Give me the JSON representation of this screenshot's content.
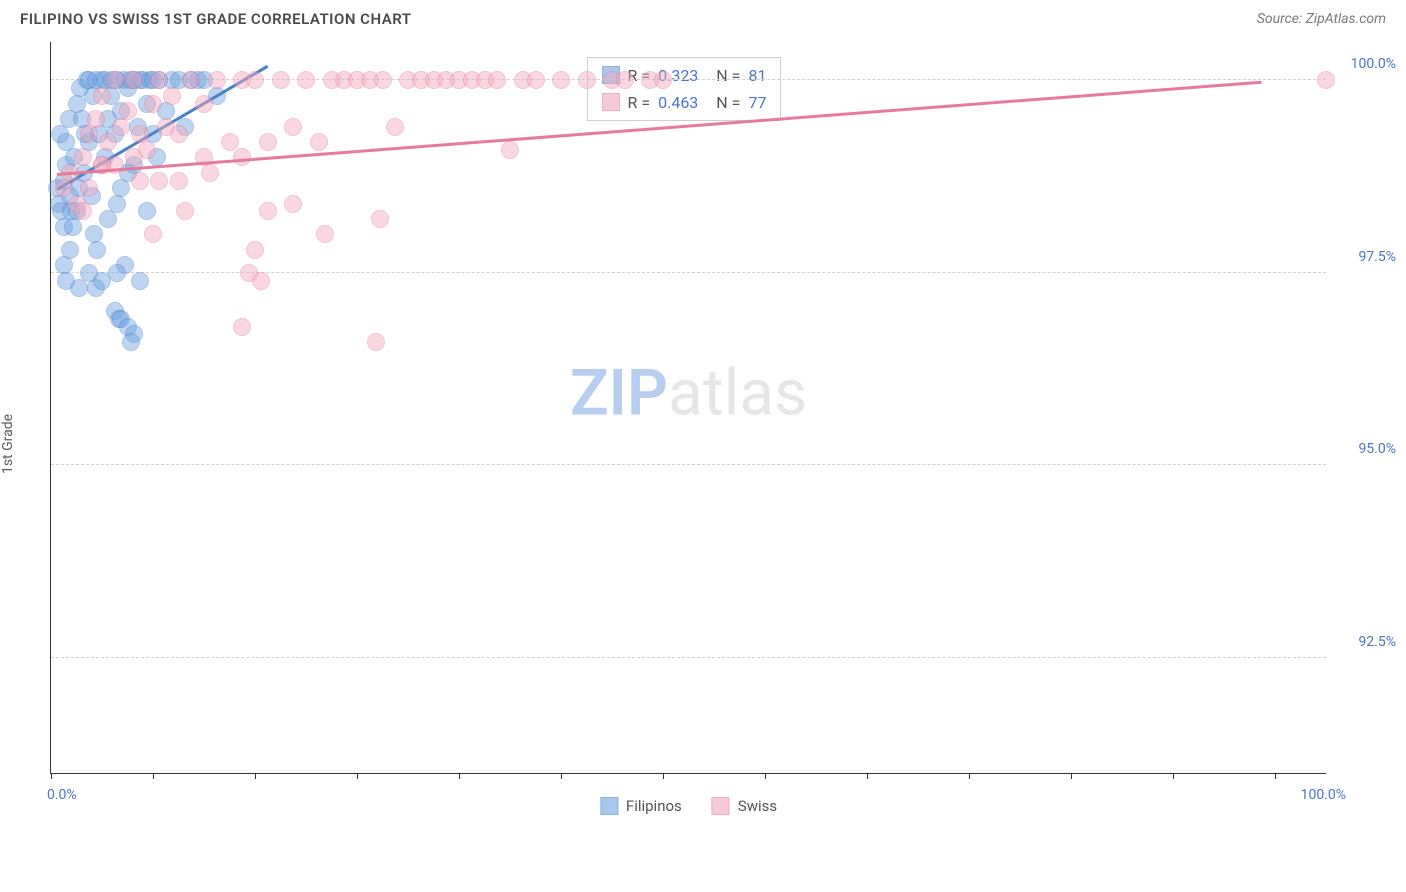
{
  "title": "FILIPINO VS SWISS 1ST GRADE CORRELATION CHART",
  "source_label": "Source: ZipAtlas.com",
  "ylabel": "1st Grade",
  "watermark": {
    "zip": "ZIP",
    "atlas": "atlas",
    "zip_color": "#b8cef0",
    "atlas_color": "#e6e6e6"
  },
  "chart": {
    "type": "scatter",
    "background_color": "#ffffff",
    "grid_color": "#d0d0d0",
    "axis_color": "#333333",
    "xlim": [
      0,
      100
    ],
    "ylim": [
      91.0,
      100.5
    ],
    "x_ticks_minor": [
      0,
      8,
      16,
      24,
      32,
      40,
      48,
      56,
      64,
      72,
      80,
      88,
      96
    ],
    "y_gridlines": [
      92.5,
      95.0,
      97.5,
      100.0
    ],
    "y_tick_labels": [
      "92.5%",
      "95.0%",
      "97.5%",
      "100.0%"
    ],
    "x_start_label": "0.0%",
    "x_end_label": "100.0%",
    "point_radius": 9,
    "point_opacity": 0.45,
    "series": [
      {
        "name": "Filipinos",
        "color": "#6fa3e0",
        "stroke": "#4a7fc9",
        "R": "0.323",
        "N": "81",
        "trend": {
          "x1": 0.5,
          "y1": 98.6,
          "x2": 17,
          "y2": 100.2,
          "width": 2.5
        },
        "points": [
          [
            0.5,
            98.6
          ],
          [
            0.6,
            98.4
          ],
          [
            0.8,
            98.3
          ],
          [
            1.0,
            98.1
          ],
          [
            1.0,
            98.7
          ],
          [
            1.2,
            98.9
          ],
          [
            1.2,
            99.2
          ],
          [
            0.7,
            99.3
          ],
          [
            1.4,
            99.5
          ],
          [
            1.5,
            98.5
          ],
          [
            1.6,
            98.3
          ],
          [
            1.7,
            98.1
          ],
          [
            1.8,
            99.0
          ],
          [
            2.0,
            99.7
          ],
          [
            2.0,
            98.3
          ],
          [
            2.2,
            98.6
          ],
          [
            2.3,
            99.9
          ],
          [
            2.4,
            99.5
          ],
          [
            2.2,
            97.3
          ],
          [
            2.6,
            98.8
          ],
          [
            2.7,
            99.3
          ],
          [
            2.8,
            100.0
          ],
          [
            3.0,
            99.2
          ],
          [
            3.0,
            100.0
          ],
          [
            3.2,
            98.5
          ],
          [
            3.3,
            99.8
          ],
          [
            3.4,
            98.0
          ],
          [
            3.5,
            100.0
          ],
          [
            3.6,
            97.8
          ],
          [
            3.8,
            99.3
          ],
          [
            4.0,
            100.0
          ],
          [
            4.2,
            99.0
          ],
          [
            4.2,
            100.0
          ],
          [
            4.5,
            99.5
          ],
          [
            4.5,
            98.2
          ],
          [
            4.7,
            99.8
          ],
          [
            4.8,
            100.0
          ],
          [
            5.0,
            99.3
          ],
          [
            5.2,
            98.4
          ],
          [
            5.2,
            100.0
          ],
          [
            5.5,
            99.6
          ],
          [
            5.7,
            100.0
          ],
          [
            5.8,
            97.6
          ],
          [
            6.0,
            99.9
          ],
          [
            6.2,
            100.0
          ],
          [
            6.5,
            98.9
          ],
          [
            6.5,
            100.0
          ],
          [
            6.8,
            99.4
          ],
          [
            7.0,
            100.0
          ],
          [
            7.2,
            100.0
          ],
          [
            7.5,
            99.7
          ],
          [
            7.5,
            98.3
          ],
          [
            7.8,
            100.0
          ],
          [
            8.0,
            99.3
          ],
          [
            8.0,
            100.0
          ],
          [
            8.3,
            99.0
          ],
          [
            8.5,
            100.0
          ],
          [
            9.0,
            99.6
          ],
          [
            9.5,
            100.0
          ],
          [
            10.0,
            100.0
          ],
          [
            10.5,
            99.4
          ],
          [
            11.0,
            100.0
          ],
          [
            11.5,
            100.0
          ],
          [
            12.0,
            100.0
          ],
          [
            13.0,
            99.8
          ],
          [
            1.0,
            97.6
          ],
          [
            1.2,
            97.4
          ],
          [
            1.5,
            97.8
          ],
          [
            5.0,
            97.0
          ],
          [
            5.3,
            96.9
          ],
          [
            5.5,
            96.9
          ],
          [
            5.2,
            97.5
          ],
          [
            6.0,
            96.8
          ],
          [
            6.5,
            96.7
          ],
          [
            6.3,
            96.6
          ],
          [
            3.0,
            97.5
          ],
          [
            3.5,
            97.3
          ],
          [
            4.0,
            97.4
          ],
          [
            6.0,
            98.8
          ],
          [
            5.5,
            98.6
          ],
          [
            7.0,
            97.4
          ]
        ]
      },
      {
        "name": "Swiss",
        "color": "#f3a8bd",
        "stroke": "#e77a9b",
        "R": "0.463",
        "N": "77",
        "trend": {
          "x1": 0.5,
          "y1": 98.8,
          "x2": 95,
          "y2": 100.0,
          "width": 2.5
        },
        "points": [
          [
            1.0,
            98.6
          ],
          [
            1.5,
            98.8
          ],
          [
            2.0,
            98.4
          ],
          [
            2.5,
            99.0
          ],
          [
            2.5,
            98.3
          ],
          [
            3.0,
            99.3
          ],
          [
            3.0,
            98.6
          ],
          [
            3.5,
            99.5
          ],
          [
            4.0,
            98.9
          ],
          [
            4.0,
            99.8
          ],
          [
            4.5,
            99.2
          ],
          [
            5.0,
            98.9
          ],
          [
            5.0,
            100.0
          ],
          [
            5.5,
            99.4
          ],
          [
            6.0,
            99.6
          ],
          [
            6.5,
            99.0
          ],
          [
            6.5,
            100.0
          ],
          [
            7.0,
            99.3
          ],
          [
            7.5,
            99.1
          ],
          [
            8.0,
            99.7
          ],
          [
            8.5,
            98.7
          ],
          [
            8.5,
            100.0
          ],
          [
            9.0,
            99.4
          ],
          [
            9.5,
            99.8
          ],
          [
            10.0,
            98.7
          ],
          [
            10.0,
            99.3
          ],
          [
            11.0,
            100.0
          ],
          [
            12.0,
            99.7
          ],
          [
            12.0,
            99.0
          ],
          [
            13.0,
            100.0
          ],
          [
            14.0,
            99.2
          ],
          [
            15.0,
            100.0
          ],
          [
            15.0,
            99.0
          ],
          [
            16.0,
            100.0
          ],
          [
            17.0,
            99.2
          ],
          [
            17.0,
            98.3
          ],
          [
            18.0,
            100.0
          ],
          [
            19.0,
            99.4
          ],
          [
            20.0,
            100.0
          ],
          [
            21.0,
            99.2
          ],
          [
            22.0,
            100.0
          ],
          [
            23.0,
            100.0
          ],
          [
            24.0,
            100.0
          ],
          [
            25.0,
            100.0
          ],
          [
            26.0,
            100.0
          ],
          [
            27.0,
            99.4
          ],
          [
            28.0,
            100.0
          ],
          [
            29.0,
            100.0
          ],
          [
            30.0,
            100.0
          ],
          [
            31.0,
            100.0
          ],
          [
            32.0,
            100.0
          ],
          [
            33.0,
            100.0
          ],
          [
            34.0,
            100.0
          ],
          [
            35.0,
            100.0
          ],
          [
            36.0,
            99.1
          ],
          [
            37.0,
            100.0
          ],
          [
            38.0,
            100.0
          ],
          [
            40.0,
            100.0
          ],
          [
            42.0,
            100.0
          ],
          [
            44.0,
            100.0
          ],
          [
            45.0,
            100.0
          ],
          [
            47.0,
            100.0
          ],
          [
            48.0,
            100.0
          ],
          [
            4.0,
            98.9
          ],
          [
            7.0,
            98.7
          ],
          [
            12.5,
            98.8
          ],
          [
            15.5,
            97.5
          ],
          [
            16.0,
            97.8
          ],
          [
            16.5,
            97.4
          ],
          [
            19.0,
            98.4
          ],
          [
            21.5,
            98.0
          ],
          [
            25.5,
            96.6
          ],
          [
            25.8,
            98.2
          ],
          [
            15.0,
            96.8
          ],
          [
            8.0,
            98.0
          ],
          [
            10.5,
            98.3
          ],
          [
            100.0,
            100.0
          ]
        ]
      }
    ],
    "rbox": {
      "left_pct": 42,
      "top_pct": 2
    },
    "legend_labels": [
      "Filipinos",
      "Swiss"
    ]
  }
}
